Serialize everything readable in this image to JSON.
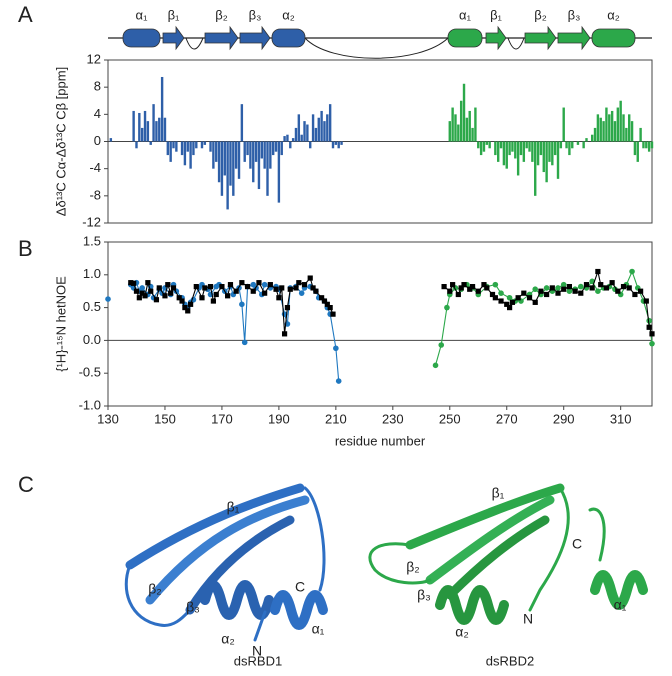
{
  "panel_labels": [
    "A",
    "B",
    "C"
  ],
  "topology": [
    {
      "color": "#2e5fa8",
      "elements": [
        {
          "label": "α₁",
          "kind": "helix"
        },
        {
          "label": "β₁",
          "kind": "strand"
        },
        {
          "label": "β₂",
          "kind": "strand"
        },
        {
          "label": "β₃",
          "kind": "strand"
        },
        {
          "label": "α₂",
          "kind": "helix"
        }
      ]
    },
    {
      "color": "#2ca84a",
      "elements": [
        {
          "label": "α₁",
          "kind": "helix"
        },
        {
          "label": "β₁",
          "kind": "strand"
        },
        {
          "label": "β₂",
          "kind": "strand"
        },
        {
          "label": "β₃",
          "kind": "strand"
        },
        {
          "label": "α₂",
          "kind": "helix"
        }
      ]
    }
  ],
  "structures": [
    {
      "name": "dsRBD1",
      "color": "#2e6fc4",
      "labels": [
        "β₁",
        "β₂",
        "β₃",
        "α₂",
        "N",
        "C",
        "α₁"
      ]
    },
    {
      "name": "dsRBD2",
      "color": "#2ca84a",
      "labels": [
        "β₁",
        "β₂",
        "β₃",
        "α₂",
        "N",
        "C",
        "α₁"
      ]
    }
  ],
  "chart_data": [
    {
      "type": "bar",
      "y_label": "Δδ¹³C Cα-Δδ¹³C Cβ [ppm]",
      "xlim": [
        130,
        321
      ],
      "ylim": [
        -12,
        12
      ],
      "yticks": [
        -12,
        -8,
        -4,
        0,
        4,
        8,
        12
      ],
      "series": [
        {
          "color": "#2e5fa8",
          "x": [
            131,
            132,
            133,
            134,
            135,
            136,
            137,
            138,
            139,
            140,
            141,
            142,
            143,
            144,
            145,
            146,
            147,
            148,
            149,
            150,
            151,
            152,
            153,
            154,
            155,
            156,
            157,
            158,
            159,
            160,
            161,
            162,
            163,
            164,
            165,
            166,
            167,
            168,
            169,
            170,
            171,
            172,
            173,
            174,
            175,
            176,
            177,
            178,
            179,
            180,
            181,
            182,
            183,
            184,
            185,
            186,
            187,
            188,
            189,
            190,
            191,
            192,
            193,
            194,
            195,
            196,
            197,
            198,
            199,
            200,
            201,
            202,
            203,
            204,
            205,
            206,
            207,
            208,
            209,
            210,
            211,
            212
          ],
          "values": [
            0.5,
            0,
            0,
            0,
            0,
            0,
            0,
            0,
            4.5,
            -1,
            4.2,
            2,
            4.5,
            3,
            -0.5,
            5.5,
            3,
            3.5,
            9.5,
            3.5,
            -2,
            -3,
            -1,
            -1.5,
            0,
            -2,
            -3.5,
            -1.5,
            -4,
            -2,
            -1,
            0,
            -1,
            -0.5,
            0,
            -1.5,
            -4,
            -3,
            -6,
            -8,
            -5,
            -10,
            -6.5,
            -8,
            -4,
            -5.5,
            5.5,
            -3,
            -2,
            -4,
            -6,
            -3,
            -7,
            -2.5,
            -4,
            -8,
            -4,
            -2,
            -1.5,
            -9,
            -2,
            0.8,
            1,
            -1,
            0.5,
            2,
            4,
            1,
            3,
            2.5,
            -1,
            4,
            2,
            3.5,
            4.5,
            3,
            4,
            5.5,
            -1,
            -0.5,
            -1,
            -0.5
          ]
        },
        {
          "color": "#2ca84a",
          "x": [
            247,
            248,
            249,
            250,
            251,
            252,
            253,
            254,
            255,
            256,
            257,
            258,
            259,
            260,
            261,
            262,
            263,
            264,
            265,
            266,
            267,
            268,
            269,
            270,
            271,
            272,
            273,
            274,
            275,
            276,
            277,
            278,
            279,
            280,
            281,
            282,
            283,
            284,
            285,
            286,
            287,
            288,
            289,
            290,
            291,
            292,
            293,
            294,
            295,
            296,
            297,
            298,
            299,
            300,
            301,
            302,
            303,
            304,
            305,
            306,
            307,
            308,
            309,
            310,
            311,
            312,
            313,
            314,
            315,
            316,
            317,
            318,
            319,
            320,
            321
          ],
          "values": [
            0,
            0,
            0,
            3,
            5,
            4,
            2.5,
            6,
            8.5,
            3.5,
            4.5,
            2,
            5,
            -1,
            -2,
            -1.5,
            -0.5,
            -1,
            0,
            -2,
            -3,
            -1,
            -3.5,
            -4,
            -2,
            -1.5,
            -2.5,
            -5,
            -2,
            -3,
            -1,
            -1.5,
            -3,
            -8,
            -3.5,
            -2,
            -4.5,
            -6,
            -3,
            -3.5,
            -2,
            -5.5,
            -1,
            5,
            -1,
            -2,
            -1,
            0,
            -0.5,
            0,
            -1,
            0.5,
            0,
            1,
            2,
            4,
            3.5,
            3,
            5,
            4,
            4.5,
            3,
            5,
            6,
            4,
            2,
            4,
            3,
            -2,
            -3,
            2,
            -1,
            -1,
            -1.5,
            -1
          ]
        }
      ]
    },
    {
      "type": "line",
      "y_label": "{¹H}-¹⁵N hetNOE",
      "x_label": "residue number",
      "xlim": [
        130,
        321
      ],
      "ylim": [
        -1,
        1.5
      ],
      "yticks": [
        {
          "value": -1,
          "label": "-1.0"
        },
        {
          "value": -0.5,
          "label": "-0.5"
        },
        {
          "value": 0,
          "label": "0.0"
        },
        {
          "value": 0.5,
          "label": "0.5"
        },
        {
          "value": 1,
          "label": "1.0"
        },
        {
          "value": 1.5,
          "label": "1.5"
        }
      ],
      "xticks": [
        130,
        150,
        170,
        190,
        210,
        230,
        250,
        270,
        290,
        310
      ],
      "series": [
        {
          "color": "#1f78c0",
          "marker": "circle",
          "x": [
            130,
            134,
            138,
            139,
            140,
            141,
            142,
            144,
            145,
            146,
            148,
            149,
            150,
            152,
            153,
            154,
            156,
            157,
            158,
            159,
            160,
            162,
            163,
            165,
            166,
            168,
            169,
            171,
            173,
            174,
            176,
            177,
            178,
            179,
            181,
            182,
            184,
            185,
            187,
            189,
            190,
            192,
            193,
            194,
            196,
            198,
            199,
            201,
            203,
            204,
            206,
            207,
            208,
            210,
            211
          ],
          "values": [
            0.63,
            null,
            0.85,
            0.8,
            0.88,
            0.75,
            0.8,
            0.7,
            0.82,
            0.65,
            0.78,
            0.72,
            0.8,
            0.7,
            0.85,
            0.75,
            0.65,
            0.55,
            0.5,
            0.58,
            0.62,
            0.8,
            0.85,
            0.78,
            0.7,
            0.82,
            0.85,
            0.75,
            0.82,
            0.7,
            0.8,
            0.55,
            -0.03,
            0.82,
            0.85,
            0.8,
            0.7,
            0.85,
            0.8,
            0.82,
            0.78,
            0.4,
            0.25,
            0.8,
            0.82,
            0.72,
            0.8,
            0.82,
            0.75,
            0.65,
            0.6,
            0.5,
            0.4,
            -0.12,
            -0.62
          ]
        },
        {
          "color": "#2ca84a",
          "marker": "circle",
          "x": [
            245,
            247,
            249,
            250,
            252,
            254,
            256,
            258,
            260,
            263,
            266,
            268,
            271,
            273,
            275,
            278,
            280,
            282,
            284,
            286,
            288,
            290,
            292,
            294,
            296,
            298,
            300,
            302,
            304,
            306,
            308,
            310,
            312,
            314,
            316,
            318,
            320,
            321
          ],
          "values": [
            -0.38,
            -0.07,
            0.5,
            0.7,
            0.8,
            0.78,
            0.85,
            0.8,
            0.7,
            0.82,
            0.85,
            0.72,
            0.65,
            0.6,
            0.6,
            0.7,
            0.78,
            0.7,
            0.8,
            0.75,
            0.8,
            0.85,
            0.75,
            0.78,
            0.82,
            0.8,
            0.9,
            0.75,
            0.8,
            0.82,
            0.78,
            0.7,
            0.85,
            1.05,
            0.8,
            0.6,
            0.3,
            -0.05
          ]
        },
        {
          "color": "#000000",
          "marker": "square",
          "x": [
            138,
            139,
            140,
            141,
            142,
            143,
            144,
            145,
            147,
            148,
            150,
            151,
            152,
            153,
            155,
            156,
            157,
            158,
            159,
            161,
            163,
            164,
            166,
            167,
            168,
            170,
            172,
            173,
            175,
            177,
            179,
            181,
            183,
            185,
            187,
            189,
            190,
            191,
            192,
            193,
            194,
            196,
            197,
            199,
            201,
            202,
            203,
            205,
            206,
            207,
            208,
            209,
            230,
            248,
            250,
            251,
            253,
            254,
            255,
            257,
            258,
            260,
            262,
            263,
            265,
            266,
            268,
            270,
            271,
            272,
            274,
            276,
            278,
            280,
            282,
            284,
            286,
            288,
            290,
            292,
            294,
            296,
            298,
            300,
            302,
            303,
            305,
            307,
            309,
            311,
            313,
            315,
            317,
            319,
            320,
            321
          ],
          "values": [
            0.88,
            0.87,
            0.75,
            0.65,
            0.72,
            0.68,
            0.88,
            0.75,
            0.62,
            0.8,
            0.68,
            0.85,
            0.72,
            0.8,
            0.65,
            0.6,
            0.5,
            0.45,
            0.55,
            0.82,
            0.65,
            0.8,
            0.82,
            0.6,
            0.7,
            0.82,
            0.68,
            0.85,
            0.75,
            0.88,
            0.82,
            0.75,
            0.88,
            0.72,
            0.85,
            0.78,
            0.65,
            0.8,
            0.1,
            0.5,
            0.78,
            0.8,
            0.88,
            0.85,
            0.95,
            0.8,
            0.75,
            0.65,
            0.6,
            0.55,
            0.5,
            0.4,
            null,
            0.82,
            0.75,
            0.85,
            0.7,
            0.8,
            0.85,
            0.78,
            0.82,
            0.75,
            0.85,
            0.8,
            0.7,
            0.65,
            0.6,
            0.55,
            0.5,
            0.58,
            0.65,
            0.72,
            0.65,
            0.58,
            0.75,
            0.7,
            0.8,
            0.72,
            0.78,
            0.82,
            0.75,
            0.72,
            0.85,
            0.8,
            1.05,
            0.85,
            0.8,
            0.88,
            0.75,
            0.82,
            0.8,
            0.7,
            0.75,
            0.6,
            0.2,
            0.1
          ]
        }
      ]
    }
  ]
}
